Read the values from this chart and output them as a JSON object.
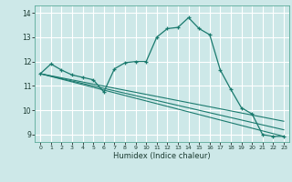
{
  "title": "",
  "xlabel": "Humidex (Indice chaleur)",
  "ylabel": "",
  "background_color": "#cde8e8",
  "grid_color": "#ffffff",
  "line_color": "#1a7a6e",
  "xlim": [
    -0.5,
    23.5
  ],
  "ylim": [
    8.7,
    14.3
  ],
  "yticks": [
    9,
    10,
    11,
    12,
    13,
    14
  ],
  "xticks": [
    0,
    1,
    2,
    3,
    4,
    5,
    6,
    7,
    8,
    9,
    10,
    11,
    12,
    13,
    14,
    15,
    16,
    17,
    18,
    19,
    20,
    21,
    22,
    23
  ],
  "main_series": {
    "x": [
      0,
      1,
      2,
      3,
      4,
      5,
      6,
      7,
      8,
      9,
      10,
      11,
      12,
      13,
      14,
      15,
      16,
      17,
      18,
      19,
      20,
      21,
      22,
      23
    ],
    "y": [
      11.5,
      11.9,
      11.65,
      11.45,
      11.35,
      11.25,
      10.75,
      11.7,
      11.95,
      12.0,
      12.0,
      13.0,
      13.35,
      13.4,
      13.8,
      13.35,
      13.1,
      11.65,
      10.85,
      10.1,
      9.85,
      9.0,
      8.93,
      8.93
    ]
  },
  "trend_lines": [
    {
      "x": [
        0,
        23
      ],
      "y": [
        11.5,
        8.93
      ]
    },
    {
      "x": [
        0,
        23
      ],
      "y": [
        11.5,
        9.55
      ]
    },
    {
      "x": [
        0,
        23
      ],
      "y": [
        11.5,
        9.2
      ]
    }
  ]
}
